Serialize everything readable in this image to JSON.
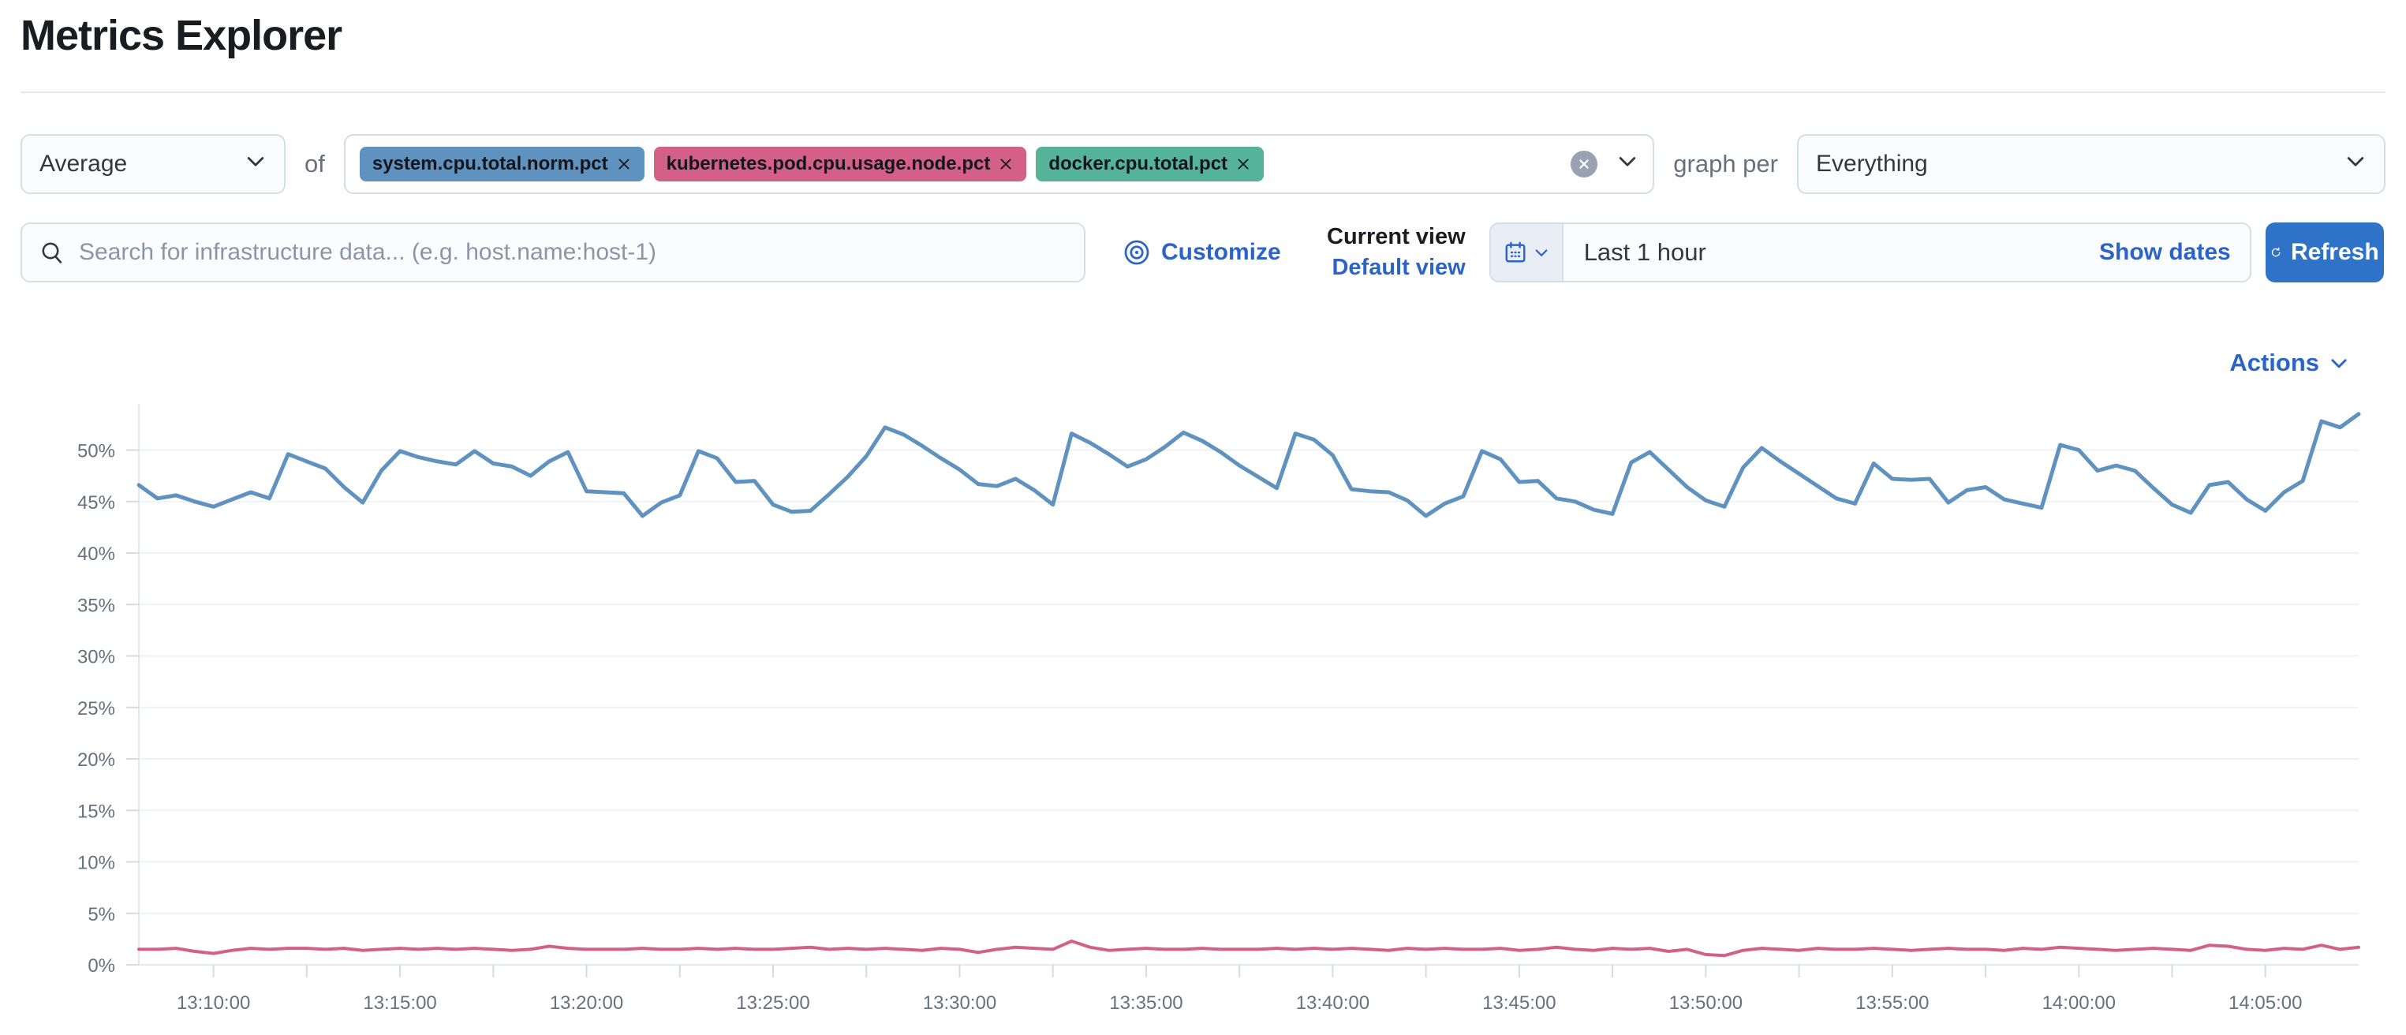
{
  "header": {
    "title": "Metrics Explorer"
  },
  "controls": {
    "aggregation": {
      "value": "Average"
    },
    "of_label": "of",
    "metrics": [
      {
        "label": "system.cpu.total.norm.pct",
        "color": "#6092c0"
      },
      {
        "label": "kubernetes.pod.cpu.usage.node.pct",
        "color": "#d36086"
      },
      {
        "label": "docker.cpu.total.pct",
        "color": "#54b399"
      }
    ],
    "graph_per_label": "graph per",
    "group_by": {
      "value": "Everything"
    }
  },
  "toolbar": {
    "search_placeholder": "Search for infrastructure data... (e.g. host.name:host-1)",
    "customize_label": "Customize",
    "current_view_label": "Current view",
    "default_view_label": "Default view",
    "time_range": "Last 1 hour",
    "show_dates_label": "Show dates",
    "refresh_label": "Refresh"
  },
  "actions_label": "Actions",
  "colors": {
    "link": "#2b64c9",
    "primary_button": "#2e73c8",
    "pill_blue": "#6092c0",
    "pill_pink": "#d36086",
    "pill_green": "#54b399"
  },
  "chart_data": {
    "type": "line",
    "title": "",
    "xlabel": "",
    "ylabel": "",
    "y_unit": "%",
    "grid": true,
    "legend": "none",
    "ylim": [
      0,
      54.5
    ],
    "y_ticks": [
      0,
      5,
      10,
      15,
      20,
      25,
      30,
      35,
      40,
      45,
      50
    ],
    "x_start": "13:08:00",
    "x_end": "14:07:30",
    "x_ticks": [
      "13:10:00",
      "13:15:00",
      "13:20:00",
      "13:25:00",
      "13:30:00",
      "13:35:00",
      "13:40:00",
      "13:45:00",
      "13:50:00",
      "13:55:00",
      "14:00:00",
      "14:05:00"
    ],
    "series": [
      {
        "name": "system.cpu.total.norm.pct (Average)",
        "color": "#6092c0",
        "stroke_width": 5,
        "values": [
          46.6,
          45.3,
          45.6,
          45.0,
          44.5,
          45.2,
          45.9,
          45.3,
          49.6,
          48.9,
          48.2,
          46.4,
          44.9,
          48.0,
          49.9,
          49.3,
          48.9,
          48.6,
          49.9,
          48.7,
          48.4,
          47.5,
          48.9,
          49.8,
          46.0,
          45.9,
          45.8,
          43.6,
          44.9,
          45.6,
          49.9,
          49.2,
          46.9,
          47.0,
          44.7,
          44.0,
          44.1,
          45.7,
          47.4,
          49.4,
          52.2,
          51.5,
          50.4,
          49.2,
          48.1,
          46.7,
          46.5,
          47.2,
          46.1,
          44.7,
          51.6,
          50.7,
          49.6,
          48.4,
          49.1,
          50.3,
          51.7,
          50.9,
          49.8,
          48.5,
          47.4,
          46.3,
          51.6,
          51.0,
          49.5,
          46.2,
          46.0,
          45.9,
          45.1,
          43.6,
          44.8,
          45.5,
          49.9,
          49.1,
          46.9,
          47.0,
          45.3,
          45.0,
          44.2,
          43.8,
          48.8,
          49.8,
          48.1,
          46.4,
          45.1,
          44.5,
          48.3,
          50.2,
          48.9,
          47.7,
          46.5,
          45.3,
          44.8,
          48.7,
          47.2,
          47.1,
          47.2,
          44.9,
          46.1,
          46.4,
          45.2,
          44.8,
          44.4,
          50.5,
          50.0,
          48.0,
          48.5,
          48.0,
          46.3,
          44.7,
          43.9,
          46.6,
          46.9,
          45.2,
          44.1,
          45.9,
          47.0,
          52.8,
          52.2,
          53.5
        ]
      },
      {
        "name": "kubernetes.pod.cpu.usage.node.pct (Average)",
        "color": "#d36086",
        "stroke_width": 4,
        "values": [
          1.5,
          1.5,
          1.6,
          1.3,
          1.1,
          1.4,
          1.6,
          1.5,
          1.6,
          1.6,
          1.5,
          1.6,
          1.4,
          1.5,
          1.6,
          1.5,
          1.6,
          1.5,
          1.6,
          1.5,
          1.4,
          1.5,
          1.8,
          1.6,
          1.5,
          1.5,
          1.5,
          1.6,
          1.5,
          1.5,
          1.6,
          1.5,
          1.6,
          1.5,
          1.5,
          1.6,
          1.7,
          1.5,
          1.6,
          1.5,
          1.6,
          1.5,
          1.4,
          1.6,
          1.5,
          1.2,
          1.5,
          1.7,
          1.6,
          1.5,
          2.3,
          1.7,
          1.4,
          1.5,
          1.6,
          1.5,
          1.5,
          1.6,
          1.5,
          1.5,
          1.5,
          1.6,
          1.5,
          1.6,
          1.5,
          1.6,
          1.5,
          1.4,
          1.6,
          1.5,
          1.6,
          1.5,
          1.5,
          1.6,
          1.4,
          1.5,
          1.7,
          1.5,
          1.4,
          1.6,
          1.5,
          1.6,
          1.3,
          1.5,
          1.0,
          0.9,
          1.4,
          1.6,
          1.5,
          1.4,
          1.6,
          1.5,
          1.5,
          1.6,
          1.5,
          1.4,
          1.5,
          1.6,
          1.5,
          1.5,
          1.4,
          1.6,
          1.5,
          1.7,
          1.6,
          1.5,
          1.4,
          1.5,
          1.6,
          1.5,
          1.4,
          1.9,
          1.8,
          1.5,
          1.4,
          1.6,
          1.5,
          1.9,
          1.5,
          1.7
        ]
      }
    ]
  }
}
